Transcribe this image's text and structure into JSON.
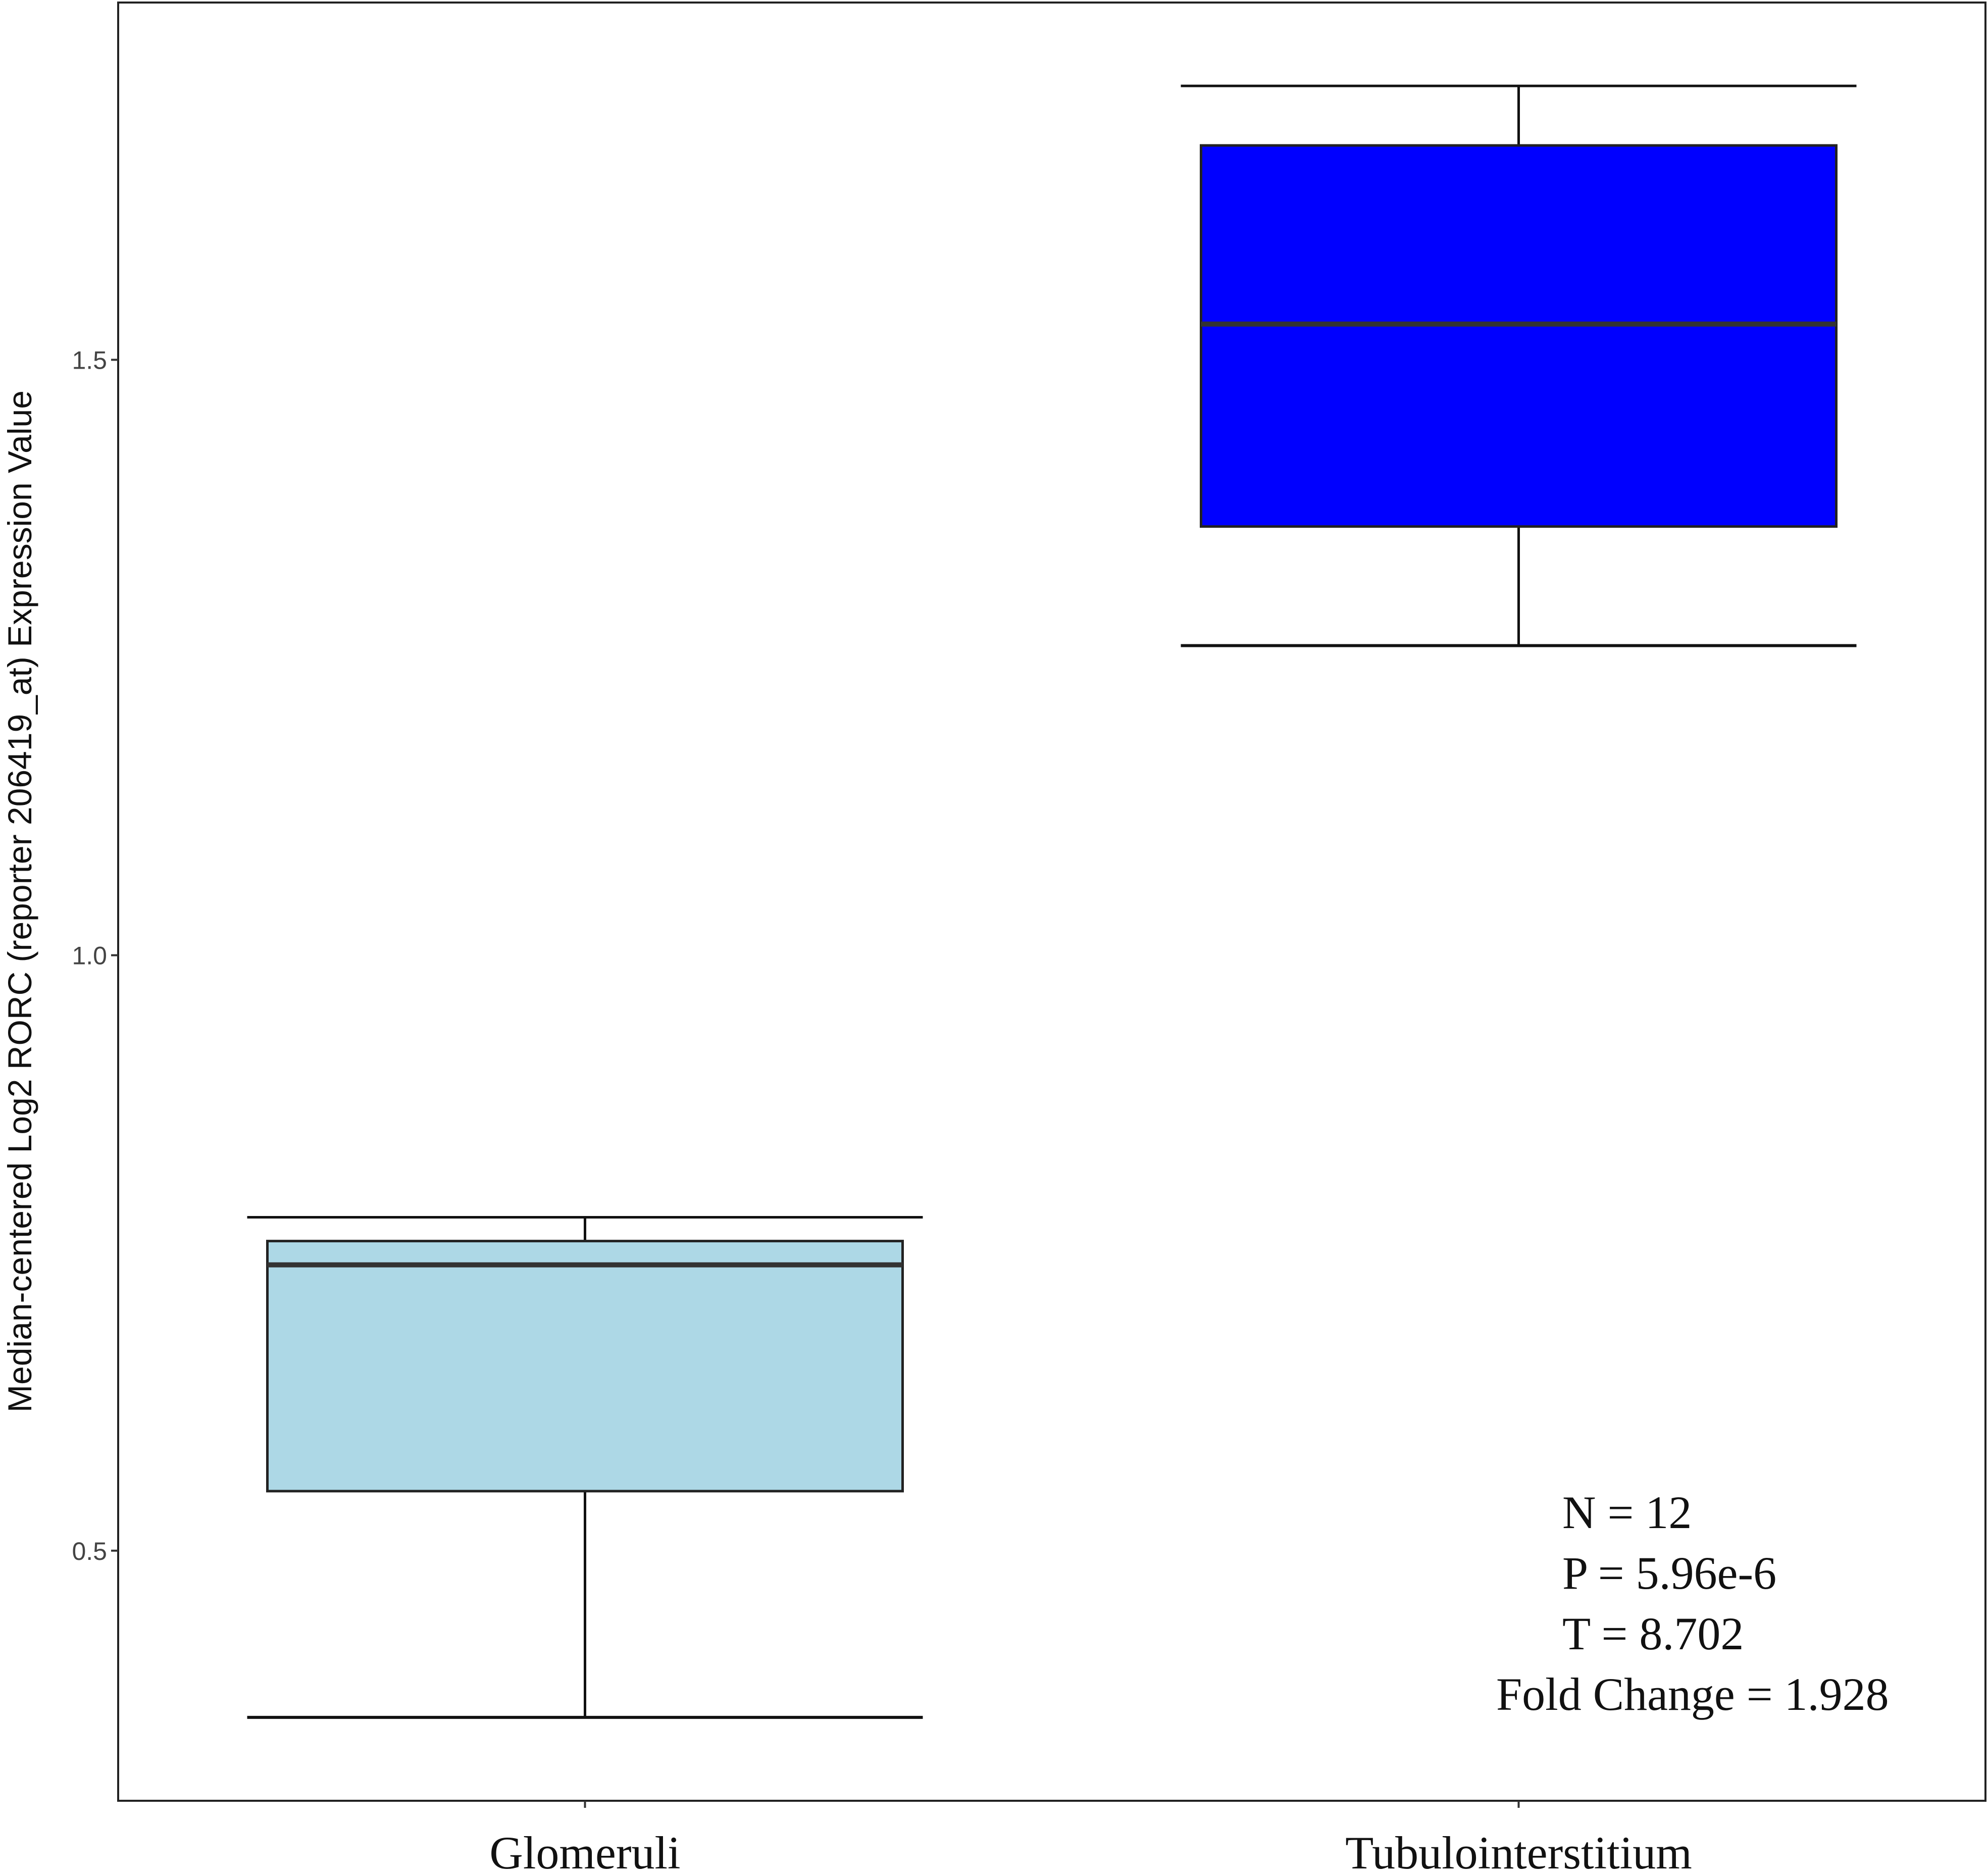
{
  "chart_data": {
    "type": "box",
    "y_label": "Median-centered Log2 RORC (reporter 206419_at) Expression Value",
    "categories": [
      "Glomeruli",
      "Tubulointerstitium"
    ],
    "boxes": [
      {
        "min": 0.36,
        "q1": 0.55,
        "median": 0.74,
        "q3": 0.76,
        "max": 0.78
      },
      {
        "min": 1.26,
        "q1": 1.36,
        "median": 1.53,
        "q3": 1.68,
        "max": 1.73
      }
    ],
    "colors": [
      "#add8e6",
      "#0000ff"
    ],
    "ylim": [
      0.29,
      1.8
    ],
    "yticks": [
      0.5,
      {
        "value": 1,
        "label": "1.0"
      },
      1.5
    ],
    "annotations": [
      "N = 12",
      "P = 5.96e-6",
      "T = 8.702",
      "Fold Change = 1.928"
    ]
  }
}
